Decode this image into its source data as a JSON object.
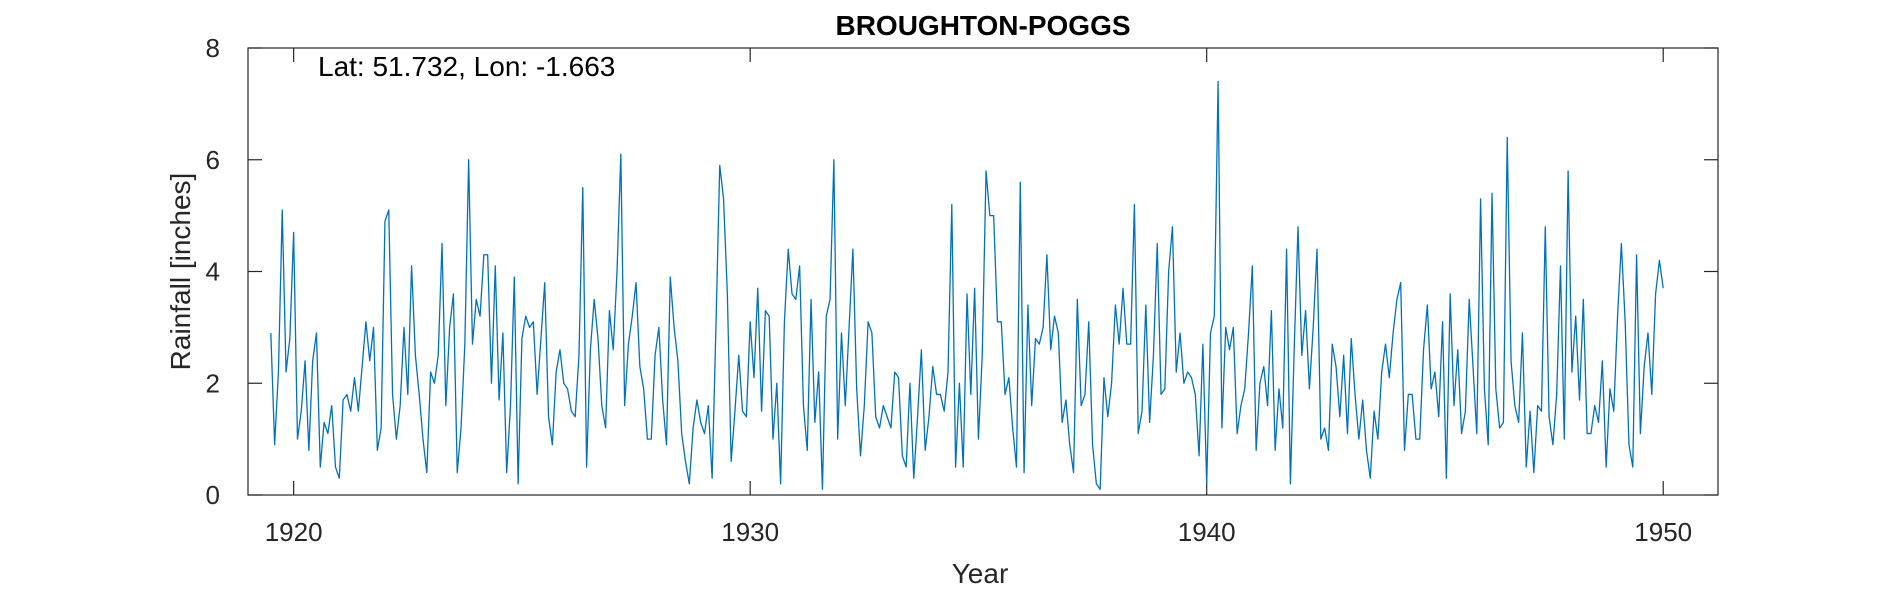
{
  "chart_data": {
    "type": "line",
    "title": "BROUGHTON-POGGS",
    "xlabel": "Year",
    "ylabel": "Rainfall [inches]",
    "annotation": "Lat: 51.732, Lon: -1.663",
    "xlim": [
      1919.0,
      1951.2
    ],
    "ylim": [
      0,
      8
    ],
    "xticks": [
      1920,
      1930,
      1940,
      1950
    ],
    "yticks": [
      0,
      2,
      4,
      6,
      8
    ],
    "xtick_labels": [
      "1920",
      "1930",
      "1940",
      "1950"
    ],
    "ytick_labels": [
      "0",
      "2",
      "4",
      "6",
      "8"
    ],
    "grid": false,
    "line_color": "#0072BD",
    "series": [
      {
        "x_start": 1919.5,
        "x_step": 0.083333,
        "values": [
          2.9,
          0.9,
          2.2,
          5.1,
          2.2,
          2.8,
          4.7,
          1.0,
          1.5,
          2.4,
          0.8,
          2.4,
          2.9,
          0.5,
          1.3,
          1.1,
          1.6,
          0.5,
          0.3,
          1.7,
          1.8,
          1.5,
          2.1,
          1.5,
          2.3,
          3.1,
          2.4,
          3.0,
          0.8,
          1.2,
          4.9,
          5.1,
          1.8,
          1.0,
          1.6,
          3.0,
          1.8,
          4.1,
          2.5,
          1.8,
          1.0,
          0.4,
          2.2,
          2.0,
          2.5,
          4.5,
          1.6,
          3.0,
          3.6,
          0.4,
          1.2,
          2.7,
          6.0,
          2.7,
          3.5,
          3.2,
          4.3,
          4.3,
          2.0,
          4.1,
          1.7,
          2.9,
          0.4,
          1.6,
          3.9,
          0.2,
          2.8,
          3.2,
          3.0,
          3.1,
          1.8,
          2.8,
          3.8,
          1.4,
          0.9,
          2.2,
          2.6,
          2.0,
          1.9,
          1.5,
          1.4,
          2.5,
          5.5,
          0.5,
          2.6,
          3.5,
          2.8,
          1.6,
          1.2,
          3.3,
          2.6,
          4.0,
          6.1,
          1.6,
          2.7,
          3.2,
          3.8,
          2.3,
          1.9,
          1.0,
          1.0,
          2.5,
          3.0,
          1.7,
          0.9,
          3.9,
          3.0,
          2.4,
          1.1,
          0.6,
          0.2,
          1.2,
          1.7,
          1.3,
          1.1,
          1.6,
          0.3,
          3.0,
          5.9,
          5.3,
          3.6,
          0.6,
          1.5,
          2.5,
          1.5,
          1.4,
          3.1,
          2.1,
          3.7,
          1.5,
          3.3,
          3.2,
          1.0,
          2.0,
          0.2,
          3.1,
          4.4,
          3.6,
          3.5,
          4.1,
          1.6,
          0.8,
          3.5,
          1.3,
          2.2,
          0.1,
          3.2,
          3.5,
          6.0,
          1.0,
          2.9,
          1.6,
          3.0,
          4.4,
          1.9,
          0.7,
          1.6,
          3.1,
          2.9,
          1.4,
          1.2,
          1.6,
          1.4,
          1.2,
          2.2,
          2.1,
          0.7,
          0.5,
          2.0,
          0.3,
          1.4,
          2.6,
          0.8,
          1.4,
          2.3,
          1.8,
          1.8,
          1.5,
          2.2,
          5.2,
          0.5,
          2.0,
          0.5,
          3.6,
          1.8,
          3.7,
          1.0,
          2.5,
          5.8,
          5.0,
          5.0,
          3.1,
          3.1,
          1.8,
          2.1,
          1.2,
          0.5,
          5.6,
          0.4,
          3.4,
          1.6,
          2.8,
          2.7,
          3.0,
          4.3,
          2.6,
          3.2,
          2.9,
          1.3,
          1.7,
          0.9,
          0.4,
          3.5,
          1.6,
          1.8,
          3.1,
          0.9,
          0.2,
          0.1,
          2.1,
          1.4,
          2.0,
          3.4,
          2.7,
          3.7,
          2.7,
          2.7,
          5.2,
          1.1,
          1.5,
          3.4,
          1.3,
          2.5,
          4.5,
          1.8,
          1.9,
          4.0,
          4.8,
          2.2,
          2.9,
          2.0,
          2.2,
          2.1,
          1.8,
          0.7,
          2.7,
          0.2,
          2.9,
          3.2,
          7.4,
          1.2,
          3.0,
          2.6,
          3.0,
          1.1,
          1.6,
          1.9,
          2.9,
          4.1,
          0.8,
          2.0,
          2.3,
          1.6,
          3.3,
          0.8,
          1.9,
          1.2,
          4.4,
          0.2,
          2.6,
          4.8,
          2.5,
          3.3,
          1.9,
          3.0,
          4.4,
          1.0,
          1.2,
          0.8,
          2.7,
          2.3,
          1.4,
          2.5,
          1.1,
          2.8,
          1.8,
          1.0,
          1.7,
          0.8,
          0.3,
          1.5,
          1.0,
          2.2,
          2.7,
          2.1,
          2.9,
          3.5,
          3.8,
          0.8,
          1.8,
          1.8,
          1.0,
          1.0,
          2.6,
          3.4,
          1.9,
          2.2,
          1.4,
          3.1,
          0.3,
          3.6,
          1.6,
          2.6,
          1.1,
          1.5,
          3.5,
          2.3,
          1.1,
          5.3,
          1.9,
          0.9,
          5.4,
          1.9,
          1.2,
          1.3,
          6.4,
          2.4,
          1.6,
          1.3,
          2.9,
          0.5,
          1.5,
          0.4,
          1.6,
          1.5,
          4.8,
          1.4,
          0.9,
          1.8,
          4.1,
          1.0,
          5.8,
          2.2,
          3.2,
          1.7,
          3.5,
          1.1,
          1.1,
          1.6,
          1.3,
          2.4,
          0.5,
          1.9,
          1.5,
          3.2,
          4.5,
          3.1,
          0.9,
          0.5,
          4.3,
          1.1,
          2.3,
          2.9,
          1.8,
          3.6,
          4.2,
          3.7
        ]
      }
    ]
  }
}
